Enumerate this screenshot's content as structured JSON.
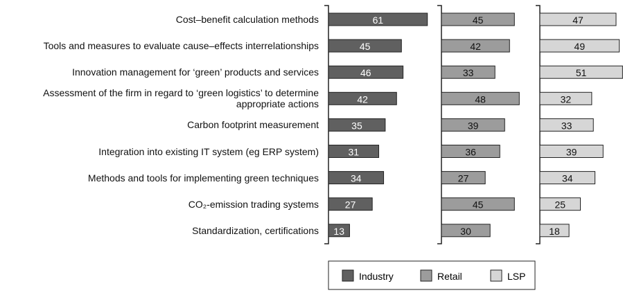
{
  "chart_data": {
    "type": "bar",
    "orientation": "horizontal",
    "categories": [
      "Cost–benefit calculation methods",
      "Tools and measures to evaluate cause–effects interrelationships",
      "Innovation management for ‘green’ products and services",
      "Assessment of the firm in regard to ‘green logistics’ to determine\nappropriate actions",
      "Carbon footprint measurement",
      "Integration into existing IT system (eg ERP system)",
      "Methods and tools for implementing green techniques",
      "CO₂-emission trading systems",
      "Standardization, certifications"
    ],
    "series": [
      {
        "name": "Industry",
        "color": "#606060",
        "values": [
          61,
          45,
          46,
          42,
          35,
          31,
          34,
          27,
          13
        ]
      },
      {
        "name": "Retail",
        "color": "#9c9c9c",
        "values": [
          45,
          42,
          33,
          48,
          39,
          36,
          27,
          45,
          30
        ]
      },
      {
        "name": "LSP",
        "color": "#d6d6d6",
        "values": [
          47,
          49,
          51,
          32,
          33,
          39,
          34,
          25,
          18
        ]
      }
    ],
    "xlim": [
      0,
      60
    ],
    "legend": "bottom"
  }
}
